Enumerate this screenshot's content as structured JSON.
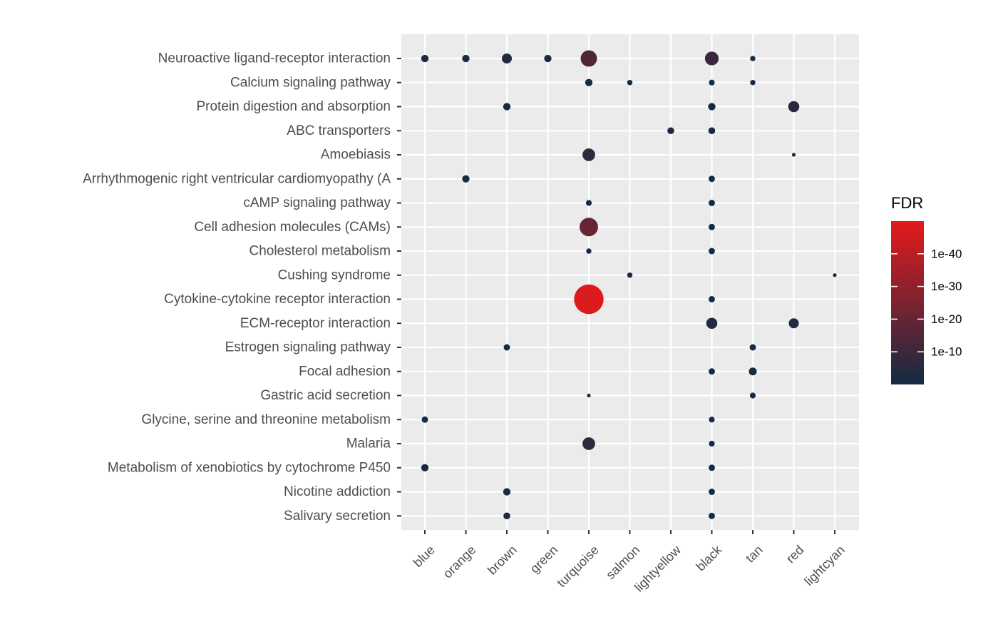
{
  "chart_data": {
    "type": "scatter",
    "title": "",
    "xlabel": "",
    "ylabel": "",
    "x_categories": [
      "blue",
      "orange",
      "brown",
      "green",
      "turquoise",
      "salmon",
      "lightyellow",
      "black",
      "tan",
      "red",
      "lightcyan"
    ],
    "y_categories": [
      "Neuroactive ligand-receptor interaction",
      "Calcium signaling pathway",
      "Protein digestion and absorption",
      "ABC transporters",
      "Amoebiasis",
      "Arrhythmogenic right ventricular cardiomyopathy (A",
      "cAMP signaling pathway",
      "Cell adhesion molecules (CAMs)",
      "Cholesterol metabolism",
      "Cushing syndrome",
      "Cytokine-cytokine receptor interaction",
      "ECM-receptor interaction",
      "Estrogen signaling pathway",
      "Focal adhesion",
      "Gastric acid secretion",
      "Glycine, serine and threonine metabolism",
      "Malaria",
      "Metabolism of xenobiotics by cytochrome P450",
      "Nicotine addiction",
      "Salivary secretion"
    ],
    "points": [
      {
        "x": "blue",
        "y": "Neuroactive ligand-receptor interaction",
        "neg_log10_fdr": 2,
        "size": 1.4
      },
      {
        "x": "orange",
        "y": "Neuroactive ligand-receptor interaction",
        "neg_log10_fdr": 2,
        "size": 1.4
      },
      {
        "x": "brown",
        "y": "Neuroactive ligand-receptor interaction",
        "neg_log10_fdr": 4,
        "size": 1.9
      },
      {
        "x": "green",
        "y": "Neuroactive ligand-receptor interaction",
        "neg_log10_fdr": 2,
        "size": 1.4
      },
      {
        "x": "turquoise",
        "y": "Neuroactive ligand-receptor interaction",
        "neg_log10_fdr": 14,
        "size": 3.1
      },
      {
        "x": "black",
        "y": "Neuroactive ligand-receptor interaction",
        "neg_log10_fdr": 9,
        "size": 2.6
      },
      {
        "x": "tan",
        "y": "Neuroactive ligand-receptor interaction",
        "neg_log10_fdr": 1,
        "size": 1.0
      },
      {
        "x": "turquoise",
        "y": "Calcium signaling pathway",
        "neg_log10_fdr": 2,
        "size": 1.4
      },
      {
        "x": "salmon",
        "y": "Calcium signaling pathway",
        "neg_log10_fdr": 1,
        "size": 1.0
      },
      {
        "x": "black",
        "y": "Calcium signaling pathway",
        "neg_log10_fdr": 1,
        "size": 1.1
      },
      {
        "x": "tan",
        "y": "Calcium signaling pathway",
        "neg_log10_fdr": 1,
        "size": 1.0
      },
      {
        "x": "brown",
        "y": "Protein digestion and absorption",
        "neg_log10_fdr": 2,
        "size": 1.4
      },
      {
        "x": "black",
        "y": "Protein digestion and absorption",
        "neg_log10_fdr": 2,
        "size": 1.4
      },
      {
        "x": "red",
        "y": "Protein digestion and absorption",
        "neg_log10_fdr": 5,
        "size": 2.1
      },
      {
        "x": "lightyellow",
        "y": "ABC transporters",
        "neg_log10_fdr": 2,
        "size": 1.3
      },
      {
        "x": "black",
        "y": "ABC transporters",
        "neg_log10_fdr": 2,
        "size": 1.3
      },
      {
        "x": "turquoise",
        "y": "Amoebiasis",
        "neg_log10_fdr": 7,
        "size": 2.4
      },
      {
        "x": "red",
        "y": "Amoebiasis",
        "neg_log10_fdr": 0.5,
        "size": 0.7
      },
      {
        "x": "orange",
        "y": "Arrhythmogenic right ventricular cardiomyopathy (A",
        "neg_log10_fdr": 2,
        "size": 1.4
      },
      {
        "x": "black",
        "y": "Arrhythmogenic right ventricular cardiomyopathy (A",
        "neg_log10_fdr": 1,
        "size": 1.2
      },
      {
        "x": "turquoise",
        "y": "cAMP signaling pathway",
        "neg_log10_fdr": 1,
        "size": 1.1
      },
      {
        "x": "black",
        "y": "cAMP signaling pathway",
        "neg_log10_fdr": 1,
        "size": 1.2
      },
      {
        "x": "turquoise",
        "y": "Cell adhesion molecules (CAMs)",
        "neg_log10_fdr": 20,
        "size": 3.5
      },
      {
        "x": "black",
        "y": "Cell adhesion molecules (CAMs)",
        "neg_log10_fdr": 1,
        "size": 1.2
      },
      {
        "x": "turquoise",
        "y": "Cholesterol metabolism",
        "neg_log10_fdr": 1,
        "size": 1.0
      },
      {
        "x": "black",
        "y": "Cholesterol metabolism",
        "neg_log10_fdr": 1,
        "size": 1.2
      },
      {
        "x": "salmon",
        "y": "Cushing syndrome",
        "neg_log10_fdr": 1,
        "size": 1.0
      },
      {
        "x": "lightcyan",
        "y": "Cushing syndrome",
        "neg_log10_fdr": 0.5,
        "size": 0.7
      },
      {
        "x": "turquoise",
        "y": "Cytokine-cytokine receptor interaction",
        "neg_log10_fdr": 48,
        "size": 5.6
      },
      {
        "x": "black",
        "y": "Cytokine-cytokine receptor interaction",
        "neg_log10_fdr": 1,
        "size": 1.2
      },
      {
        "x": "black",
        "y": "ECM-receptor interaction",
        "neg_log10_fdr": 4,
        "size": 2.1
      },
      {
        "x": "red",
        "y": "ECM-receptor interaction",
        "neg_log10_fdr": 4,
        "size": 1.9
      },
      {
        "x": "brown",
        "y": "Estrogen signaling pathway",
        "neg_log10_fdr": 1,
        "size": 1.2
      },
      {
        "x": "tan",
        "y": "Estrogen signaling pathway",
        "neg_log10_fdr": 1,
        "size": 1.2
      },
      {
        "x": "black",
        "y": "Focal adhesion",
        "neg_log10_fdr": 1,
        "size": 1.2
      },
      {
        "x": "tan",
        "y": "Focal adhesion",
        "neg_log10_fdr": 2,
        "size": 1.5
      },
      {
        "x": "turquoise",
        "y": "Gastric acid secretion",
        "neg_log10_fdr": 0.5,
        "size": 0.7
      },
      {
        "x": "tan",
        "y": "Gastric acid secretion",
        "neg_log10_fdr": 1,
        "size": 1.1
      },
      {
        "x": "blue",
        "y": "Glycine, serine and threonine metabolism",
        "neg_log10_fdr": 1,
        "size": 1.2
      },
      {
        "x": "black",
        "y": "Glycine, serine and threonine metabolism",
        "neg_log10_fdr": 1,
        "size": 1.1
      },
      {
        "x": "turquoise",
        "y": "Malaria",
        "neg_log10_fdr": 7,
        "size": 2.4
      },
      {
        "x": "black",
        "y": "Malaria",
        "neg_log10_fdr": 1,
        "size": 1.1
      },
      {
        "x": "blue",
        "y": "Metabolism of xenobiotics by cytochrome P450",
        "neg_log10_fdr": 2,
        "size": 1.4
      },
      {
        "x": "black",
        "y": "Metabolism of xenobiotics by cytochrome P450",
        "neg_log10_fdr": 1,
        "size": 1.2
      },
      {
        "x": "brown",
        "y": "Nicotine addiction",
        "neg_log10_fdr": 2,
        "size": 1.4
      },
      {
        "x": "black",
        "y": "Nicotine addiction",
        "neg_log10_fdr": 1,
        "size": 1.2
      },
      {
        "x": "brown",
        "y": "Salivary secretion",
        "neg_log10_fdr": 2,
        "size": 1.3
      },
      {
        "x": "black",
        "y": "Salivary secretion",
        "neg_log10_fdr": 1,
        "size": 1.2
      }
    ],
    "legend": {
      "title": "FDR",
      "placement": "right",
      "scale": "log10",
      "ticks": [
        {
          "label": "1e-10",
          "neg_log10": 10
        },
        {
          "label": "1e-20",
          "neg_log10": 20
        },
        {
          "label": "1e-30",
          "neg_log10": 30
        },
        {
          "label": "1e-40",
          "neg_log10": 40
        }
      ],
      "range_neg_log10": [
        0,
        50
      ],
      "low_color": "#132B43",
      "high_color": "#E41A1C"
    },
    "grid": true,
    "panel_background": "#EBEBEB"
  }
}
